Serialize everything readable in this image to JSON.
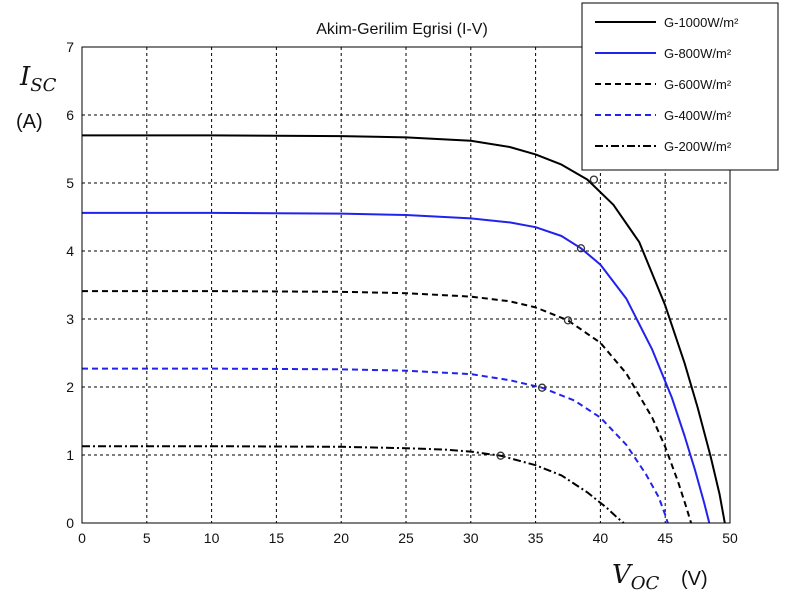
{
  "chart_data": {
    "type": "line",
    "title": "Akim-Gerilim Egrisi (I-V)",
    "xlabel": {
      "main": "V",
      "sub": "OC",
      "unit": "(V)"
    },
    "ylabel": {
      "main": "I",
      "sub": "SC",
      "unit": "(A)"
    },
    "xlim": [
      0,
      50
    ],
    "ylim": [
      0,
      7
    ],
    "xticks": [
      "0",
      "5",
      "10",
      "15",
      "20",
      "25",
      "30",
      "35",
      "40",
      "45",
      "50"
    ],
    "yticks": [
      "0",
      "1",
      "2",
      "3",
      "4",
      "5",
      "6",
      "7"
    ],
    "grid": true,
    "legend_position": "top-right",
    "series": [
      {
        "name": "G-1000W/m²",
        "color": "#000000",
        "dash": "solid",
        "x": [
          0,
          10,
          20,
          25,
          30,
          33,
          35,
          37,
          39,
          41,
          43,
          45,
          46.5,
          47.5,
          48.5,
          49.2,
          49.6
        ],
        "y": [
          5.7,
          5.7,
          5.69,
          5.67,
          5.62,
          5.53,
          5.42,
          5.27,
          5.05,
          4.68,
          4.13,
          3.2,
          2.35,
          1.7,
          0.98,
          0.42,
          0
        ],
        "mpp": [
          39.5,
          5.05
        ]
      },
      {
        "name": "G-800W/m²",
        "color": "#2222ee",
        "dash": "solid",
        "x": [
          0,
          10,
          20,
          25,
          30,
          33,
          35,
          37,
          38.5,
          40,
          42,
          44,
          45.5,
          46.5,
          47.3,
          48,
          48.4
        ],
        "y": [
          4.56,
          4.56,
          4.55,
          4.53,
          4.48,
          4.42,
          4.35,
          4.22,
          4.04,
          3.8,
          3.3,
          2.55,
          1.85,
          1.28,
          0.78,
          0.3,
          0
        ],
        "mpp": [
          38.5,
          4.04
        ]
      },
      {
        "name": "G-600W/m²",
        "color": "#000000",
        "dash": "dashed",
        "x": [
          0,
          10,
          20,
          25,
          30,
          33,
          35,
          37.5,
          40,
          42,
          44,
          45,
          46,
          46.6,
          47.0
        ],
        "y": [
          3.41,
          3.41,
          3.4,
          3.38,
          3.33,
          3.26,
          3.17,
          2.98,
          2.65,
          2.2,
          1.55,
          1.12,
          0.6,
          0.25,
          0
        ],
        "mpp": [
          37.5,
          2.98
        ]
      },
      {
        "name": "G-400W/m²",
        "color": "#2222ee",
        "dash": "dashed",
        "x": [
          0,
          10,
          20,
          25,
          30,
          33,
          35.5,
          38,
          40,
          42,
          43.5,
          44.5,
          45.0,
          45.2
        ],
        "y": [
          2.27,
          2.27,
          2.26,
          2.24,
          2.19,
          2.1,
          1.99,
          1.8,
          1.55,
          1.15,
          0.72,
          0.38,
          0.12,
          0
        ],
        "mpp": [
          35.5,
          1.99
        ]
      },
      {
        "name": "G-200W/m²",
        "color": "#000000",
        "dash": "dashdot",
        "x": [
          0,
          10,
          20,
          25,
          28,
          30,
          32.3,
          35,
          37,
          39,
          40.5,
          41.3,
          41.8
        ],
        "y": [
          1.13,
          1.13,
          1.12,
          1.1,
          1.08,
          1.05,
          0.99,
          0.85,
          0.7,
          0.45,
          0.22,
          0.08,
          0
        ],
        "mpp": [
          32.3,
          0.99
        ]
      }
    ]
  }
}
